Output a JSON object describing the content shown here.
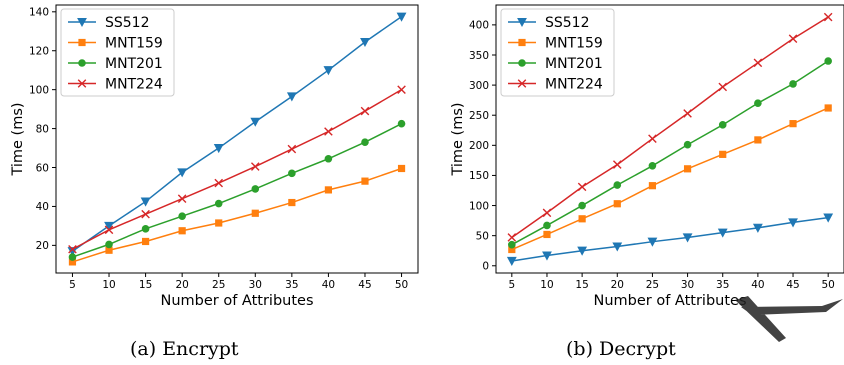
{
  "colors": {
    "SS512": "#1f77b4",
    "MNT159": "#ff7f0e",
    "MNT201": "#2ca02c",
    "MNT224": "#d62728",
    "watermark": "#222222"
  },
  "chart_data": [
    {
      "type": "line",
      "caption": "(a)  Encrypt",
      "xlabel": "Number of Attributes",
      "ylabel": "Time (ms)",
      "x": [
        5,
        10,
        15,
        20,
        25,
        30,
        35,
        40,
        45,
        50
      ],
      "xticks": [
        5,
        10,
        15,
        20,
        25,
        30,
        35,
        40,
        45,
        50
      ],
      "yticks": [
        20,
        40,
        60,
        80,
        100,
        120,
        140
      ],
      "xlim": [
        2.75,
        52.25
      ],
      "ylim": [
        5.8,
        143.5
      ],
      "legend": "top-left",
      "grid": false,
      "series": [
        {
          "name": "SS512",
          "marker": "triangle-down-icon",
          "values": [
            17,
            30,
            42.5,
            57.5,
            70,
            83.5,
            96.5,
            110,
            124.5,
            137.5
          ]
        },
        {
          "name": "MNT159",
          "marker": "square-icon",
          "values": [
            11.5,
            17.5,
            22,
            27.5,
            31.5,
            36.5,
            42,
            48.5,
            53,
            59.5
          ]
        },
        {
          "name": "MNT201",
          "marker": "circle-icon",
          "values": [
            14,
            20.5,
            28.5,
            35,
            41.5,
            49,
            57,
            64.5,
            73,
            82.5
          ]
        },
        {
          "name": "MNT224",
          "marker": "x-icon",
          "values": [
            18,
            28,
            36,
            44,
            52,
            60.5,
            69.5,
            78.5,
            89,
            100
          ]
        }
      ]
    },
    {
      "type": "line",
      "caption": "(b)  Decrypt",
      "xlabel": "Number of Attributes",
      "ylabel": "Time (ms)",
      "x": [
        5,
        10,
        15,
        20,
        25,
        30,
        35,
        40,
        45,
        50
      ],
      "xticks": [
        5,
        10,
        15,
        20,
        25,
        30,
        35,
        40,
        45,
        50
      ],
      "yticks": [
        0,
        50,
        100,
        150,
        200,
        250,
        300,
        350,
        400
      ],
      "xlim": [
        2.75,
        52.25
      ],
      "ylim": [
        -12,
        433
      ],
      "legend": "top-left",
      "grid": false,
      "series": [
        {
          "name": "SS512",
          "marker": "triangle-down-icon",
          "values": [
            8,
            17,
            25,
            32,
            40,
            47,
            55,
            63,
            72,
            80
          ]
        },
        {
          "name": "MNT159",
          "marker": "square-icon",
          "values": [
            27,
            52,
            78,
            103,
            133,
            161,
            185,
            209,
            236,
            262
          ]
        },
        {
          "name": "MNT201",
          "marker": "circle-icon",
          "values": [
            35,
            67,
            100,
            134,
            166,
            201,
            234,
            270,
            302,
            340
          ]
        },
        {
          "name": "MNT224",
          "marker": "x-icon",
          "values": [
            47,
            88,
            131,
            168,
            211,
            253,
            297,
            337,
            377,
            413
          ]
        }
      ]
    }
  ]
}
